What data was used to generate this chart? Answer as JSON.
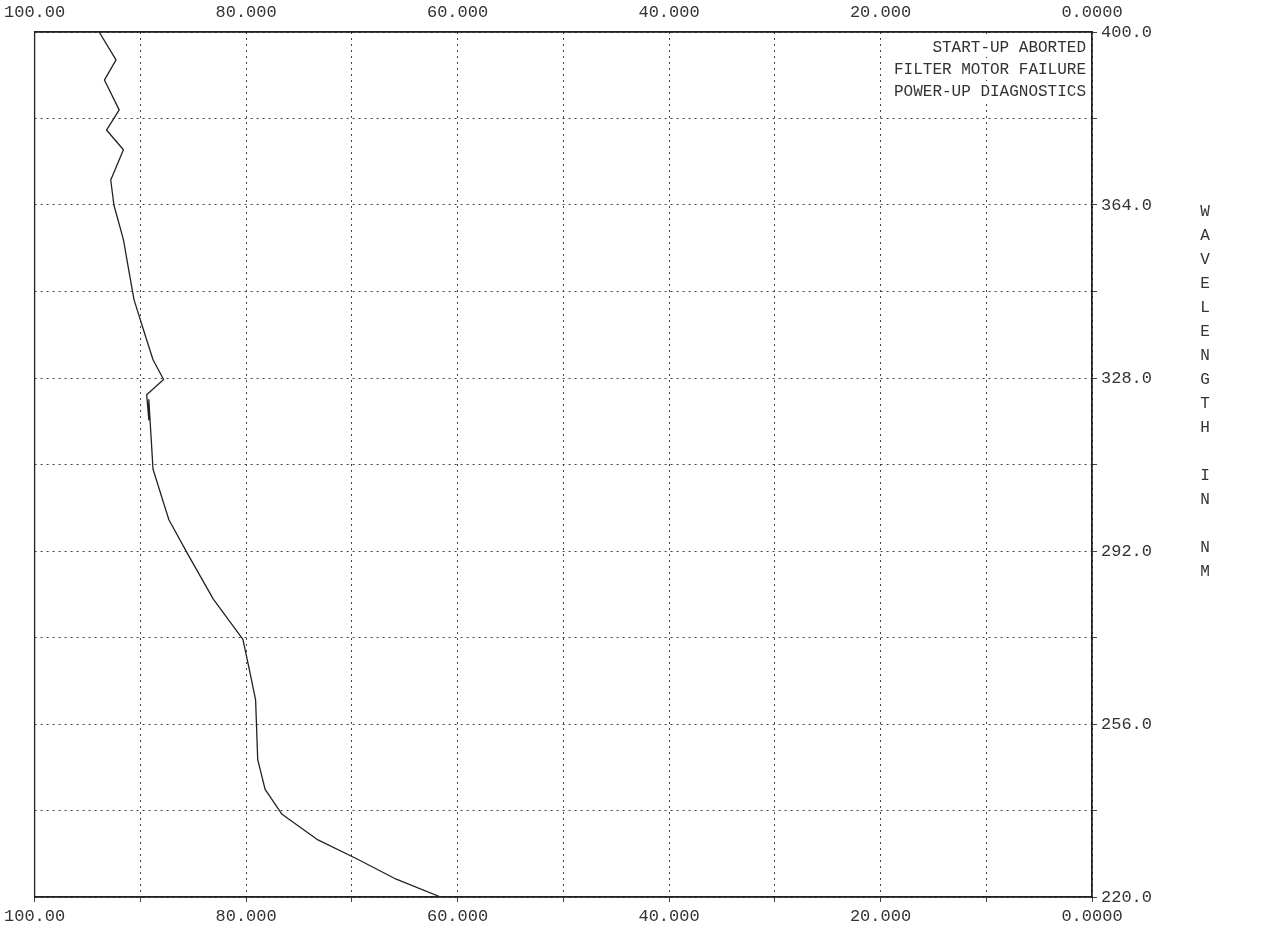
{
  "chart_data": {
    "type": "line",
    "ylabel": "WAVELENGTH IN NM",
    "annotations": [
      "START-UP ABORTED",
      "FILTER MOTOR FAILURE",
      "POWER-UP DIAGNOSTICS"
    ],
    "series": [
      {
        "color": "#222222",
        "x": [
          93.9,
          92.3,
          93.4,
          92.0,
          93.2,
          91.6,
          92.8,
          92.5,
          91.6,
          91.1,
          90.6,
          89.7,
          88.8,
          87.8,
          89.4,
          89.2,
          89.2,
          88.8,
          87.3,
          85.5,
          83.1,
          80.3,
          79.7,
          79.1,
          78.9,
          78.2,
          76.6,
          73.3,
          69.5,
          65.8,
          61.6
        ],
        "values": [
          400,
          394.2,
          390,
          383.8,
          379.6,
          375.5,
          369.2,
          364,
          356.8,
          350.5,
          344.3,
          338,
          331.8,
          327.7,
          324.5,
          319.3,
          323.5,
          309,
          298.5,
          291.3,
          282,
          273.6,
          267.4,
          261,
          248.6,
          242.4,
          237.2,
          232,
          227.9,
          223.7,
          220
        ]
      }
    ],
    "xlim": [
      100,
      0
    ],
    "xticks": [
      {
        "value": 100,
        "label": "100.00"
      },
      {
        "value": 90,
        "label": null
      },
      {
        "value": 80,
        "label": "80.000"
      },
      {
        "value": 70,
        "label": null
      },
      {
        "value": 60,
        "label": "60.000"
      },
      {
        "value": 50,
        "label": null
      },
      {
        "value": 40,
        "label": "40.000"
      },
      {
        "value": 30,
        "label": null
      },
      {
        "value": 20,
        "label": "20.000"
      },
      {
        "value": 10,
        "label": null
      },
      {
        "value": 0,
        "label": "0.0000"
      }
    ],
    "x2lim": [
      100,
      0
    ],
    "x2ticks": [
      {
        "value": 100,
        "label": "100.00"
      },
      {
        "value": 90,
        "label": null
      },
      {
        "value": 80,
        "label": "80.000"
      },
      {
        "value": 70,
        "label": null
      },
      {
        "value": 60,
        "label": "60.000"
      },
      {
        "value": 50,
        "label": null
      },
      {
        "value": 40,
        "label": "40.000"
      },
      {
        "value": 30,
        "label": null
      },
      {
        "value": 20,
        "label": "20.000"
      },
      {
        "value": 10,
        "label": null
      },
      {
        "value": 0,
        "label": "0.0000"
      }
    ],
    "ylim": [
      220,
      400
    ],
    "yticks": [
      {
        "value": 220,
        "label": "220.0"
      },
      {
        "value": 238,
        "label": null
      },
      {
        "value": 256,
        "label": "256.0"
      },
      {
        "value": 274,
        "label": null
      },
      {
        "value": 292,
        "label": "292.0"
      },
      {
        "value": 310,
        "label": null
      },
      {
        "value": 328,
        "label": "328.0"
      },
      {
        "value": 346,
        "label": null
      },
      {
        "value": 364,
        "label": "364.0"
      },
      {
        "value": 382,
        "label": null
      },
      {
        "value": 400,
        "label": "400.0"
      }
    ],
    "grid": true,
    "legend": false,
    "marker": "none",
    "line_style": "solid"
  }
}
